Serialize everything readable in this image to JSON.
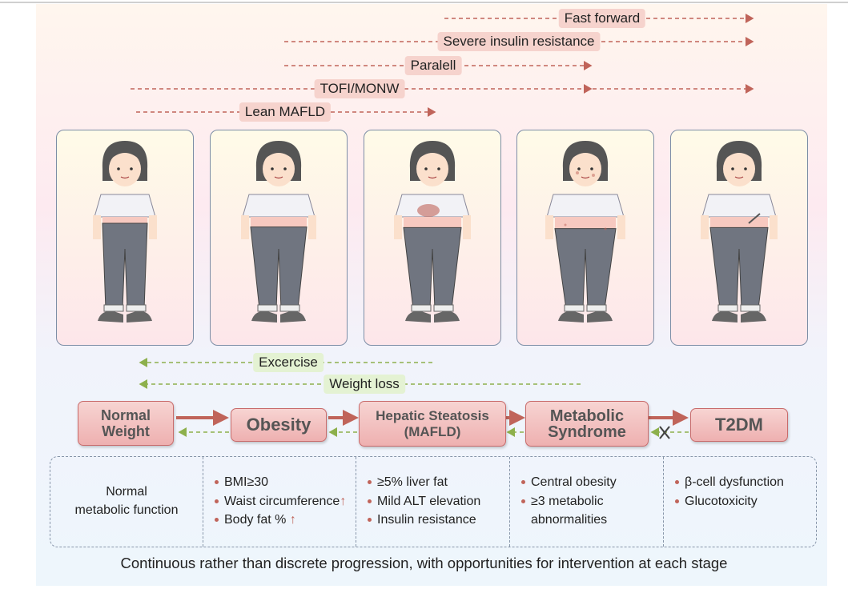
{
  "pathways": [
    {
      "label": "Fast forward"
    },
    {
      "label": "Severe insulin resistance"
    },
    {
      "label": "Paralell"
    },
    {
      "label": "TOFI/MONW"
    },
    {
      "label": "Lean MAFLD"
    }
  ],
  "interventions": [
    {
      "label": "Excercise"
    },
    {
      "label": "Weight loss"
    }
  ],
  "stages": [
    {
      "line1": "Normal",
      "line2": "Weight"
    },
    {
      "line1": "Obesity",
      "line2": ""
    },
    {
      "line1": "Hepatic Steatosis",
      "line2": "(MAFLD)"
    },
    {
      "line1": "Metabolic",
      "line2": "Syndrome"
    },
    {
      "line1": "T2DM",
      "line2": ""
    }
  ],
  "details": {
    "normal": {
      "line1": "Normal",
      "line2": "metabolic function"
    },
    "obesity": [
      "BMI≥30",
      "Waist circumference",
      "Body fat %"
    ],
    "up_arrow": "↑",
    "mafld": [
      "≥5% liver fat",
      "Mild ALT elevation",
      "Insulin resistance"
    ],
    "metabolic": [
      "Central obesity",
      "≥3 metabolic",
      "abnormalities"
    ],
    "t2dm": [
      "β-cell dysfunction",
      "Glucotoxicity"
    ]
  },
  "caption": "Continuous rather than discrete progression, with opportunities for intervention at each stage",
  "colors": {
    "progression": "#c0645a",
    "intervention": "#8db04c",
    "stage_fill": "#f2c2c0"
  }
}
